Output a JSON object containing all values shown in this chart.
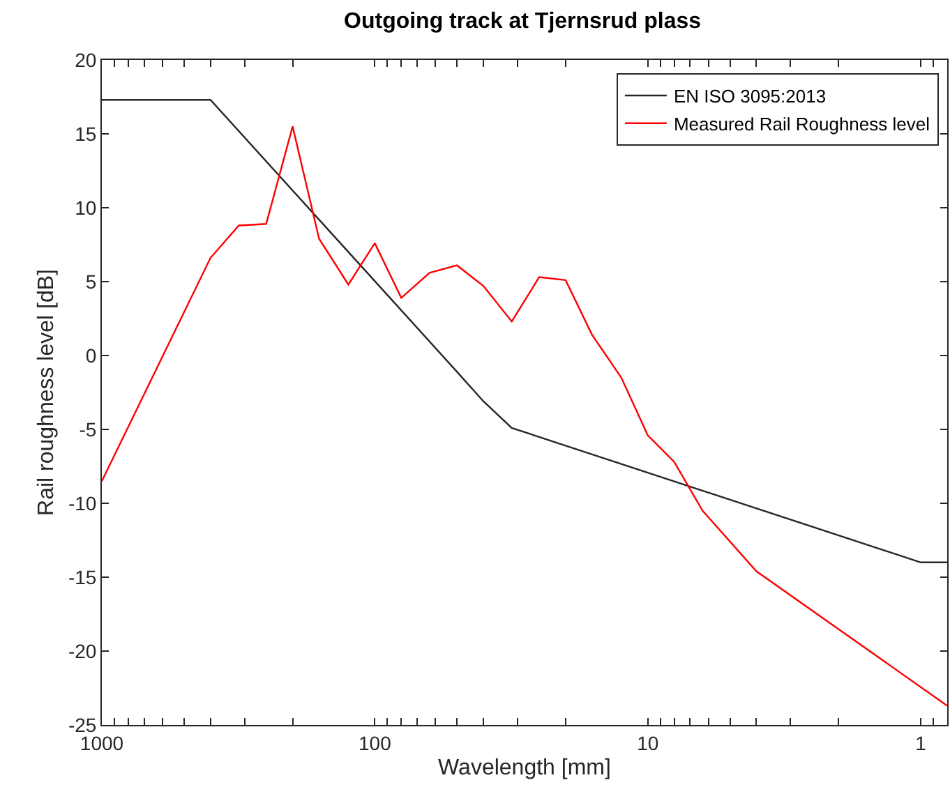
{
  "chart_data": {
    "type": "line",
    "title": "Outgoing track at Tjernsrud plass",
    "xlabel": "Wavelength [mm]",
    "ylabel": "Rail roughness level [dB]",
    "log": "x",
    "xlim": [
      1000,
      0.8
    ],
    "ylim": [
      -25,
      20
    ],
    "xticks": [
      1000,
      {
        "value": 900,
        "label": null
      },
      {
        "value": 800,
        "label": null
      },
      {
        "value": 700,
        "label": null
      },
      {
        "value": 600,
        "label": null
      },
      {
        "value": 500,
        "label": null
      },
      {
        "value": 400,
        "label": null
      },
      {
        "value": 300,
        "label": null
      },
      {
        "value": 200,
        "label": null
      },
      100,
      {
        "value": 90,
        "label": null
      },
      {
        "value": 80,
        "label": null
      },
      {
        "value": 70,
        "label": null
      },
      {
        "value": 60,
        "label": null
      },
      {
        "value": 50,
        "label": null
      },
      {
        "value": 40,
        "label": null
      },
      {
        "value": 30,
        "label": null
      },
      {
        "value": 20,
        "label": null
      },
      10,
      {
        "value": 9,
        "label": null
      },
      {
        "value": 8,
        "label": null
      },
      {
        "value": 7,
        "label": null
      },
      {
        "value": 6,
        "label": null
      },
      {
        "value": 5,
        "label": null
      },
      {
        "value": 4,
        "label": null
      },
      {
        "value": 3,
        "label": null
      },
      {
        "value": 2,
        "label": null
      },
      1,
      {
        "value": 0.9,
        "label": null
      }
    ],
    "yticks": [
      -25,
      -20,
      -15,
      -10,
      -5,
      0,
      5,
      10,
      15,
      20
    ],
    "legend": "top right",
    "line_style": "solid",
    "marker": "none",
    "series": [
      {
        "name": "EN ISO 3095:2013",
        "color": "#262626",
        "x": [
          1000,
          400,
          50,
          40,
          31.5,
          1,
          0.8
        ],
        "values": [
          17.3,
          17.3,
          -1.1,
          -3.1,
          -4.9,
          -14.0,
          -14.0
        ]
      },
      {
        "name": "Measured Rail Roughness level",
        "color": "#ff0000",
        "x": [
          1000,
          400,
          315,
          250,
          200,
          160,
          125,
          100,
          80,
          63,
          50,
          40,
          31.5,
          25,
          20,
          16,
          12.5,
          10,
          8,
          6.3,
          4,
          0.8
        ],
        "values": [
          -8.5,
          6.6,
          8.8,
          8.9,
          15.5,
          7.9,
          4.8,
          7.6,
          3.9,
          5.6,
          6.1,
          4.7,
          2.3,
          5.3,
          5.1,
          1.4,
          -1.5,
          -5.4,
          -7.2,
          -10.5,
          -14.6,
          -23.7
        ]
      }
    ]
  }
}
